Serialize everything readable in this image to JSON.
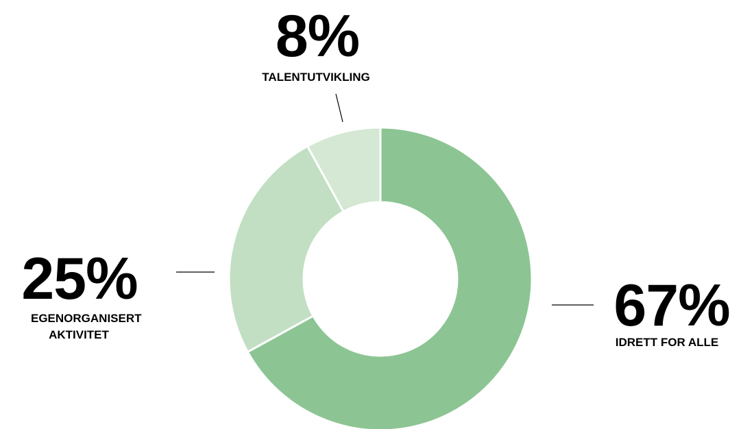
{
  "chart_data": {
    "type": "donut",
    "categories": [
      "IDRETT FOR ALLE",
      "EGENORGANISERT AKTIVITET",
      "TALENTUTVIKLING"
    ],
    "values": [
      67,
      25,
      8
    ],
    "value_labels": [
      "67%",
      "25%",
      "8%"
    ],
    "colors": [
      "#8cc593",
      "#c2dfc3",
      "#d4e8d3"
    ]
  }
}
